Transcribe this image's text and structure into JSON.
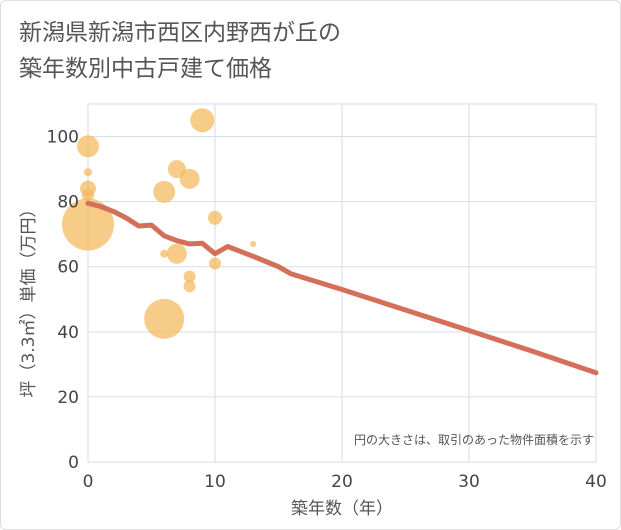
{
  "chart_data": {
    "type": "scatter",
    "title_lines": [
      "新潟県新潟市西区内野西が丘の",
      "築年数別中古戸建て価格"
    ],
    "xlabel": "築年数（年）",
    "ylabel": "坪（3.3㎡）単価（万円）",
    "xlim": [
      0,
      40
    ],
    "ylim": [
      0,
      110
    ],
    "x_ticks": [
      0,
      10,
      20,
      30,
      40
    ],
    "y_ticks": [
      0,
      20,
      40,
      60,
      80,
      100
    ],
    "grid": true,
    "note": "円の大きさは、取引のあった物件面積を示す",
    "colors": {
      "bubble": "#f4b75a",
      "trend": "#d4705a",
      "grid": "#d5dde6"
    },
    "bubbles": [
      {
        "x": 0,
        "y": 73,
        "size": 26
      },
      {
        "x": 0,
        "y": 97,
        "size": 11
      },
      {
        "x": 0,
        "y": 84,
        "size": 8
      },
      {
        "x": 0,
        "y": 82,
        "size": 6
      },
      {
        "x": 0,
        "y": 89,
        "size": 4
      },
      {
        "x": 6,
        "y": 44,
        "size": 20
      },
      {
        "x": 6,
        "y": 83,
        "size": 11
      },
      {
        "x": 6,
        "y": 64,
        "size": 4
      },
      {
        "x": 7,
        "y": 90,
        "size": 9
      },
      {
        "x": 7,
        "y": 64,
        "size": 10
      },
      {
        "x": 8,
        "y": 87,
        "size": 10
      },
      {
        "x": 8,
        "y": 57,
        "size": 6
      },
      {
        "x": 8,
        "y": 54,
        "size": 6
      },
      {
        "x": 9,
        "y": 105,
        "size": 12
      },
      {
        "x": 10,
        "y": 75,
        "size": 7
      },
      {
        "x": 10,
        "y": 61,
        "size": 6
      },
      {
        "x": 13,
        "y": 67,
        "size": 3
      }
    ],
    "trend": {
      "x": [
        0,
        1,
        2,
        3,
        4,
        5,
        6,
        7,
        8,
        9,
        10,
        11,
        12,
        13,
        14,
        15,
        16,
        20,
        25,
        30,
        35,
        40
      ],
      "y": [
        79.5,
        78.5,
        77,
        75,
        72.5,
        72.8,
        69.5,
        68,
        67,
        67.2,
        64,
        66.2,
        64.7,
        63.2,
        61.6,
        60,
        57.8,
        53,
        46.7,
        40.4,
        34,
        27.4
      ]
    }
  }
}
